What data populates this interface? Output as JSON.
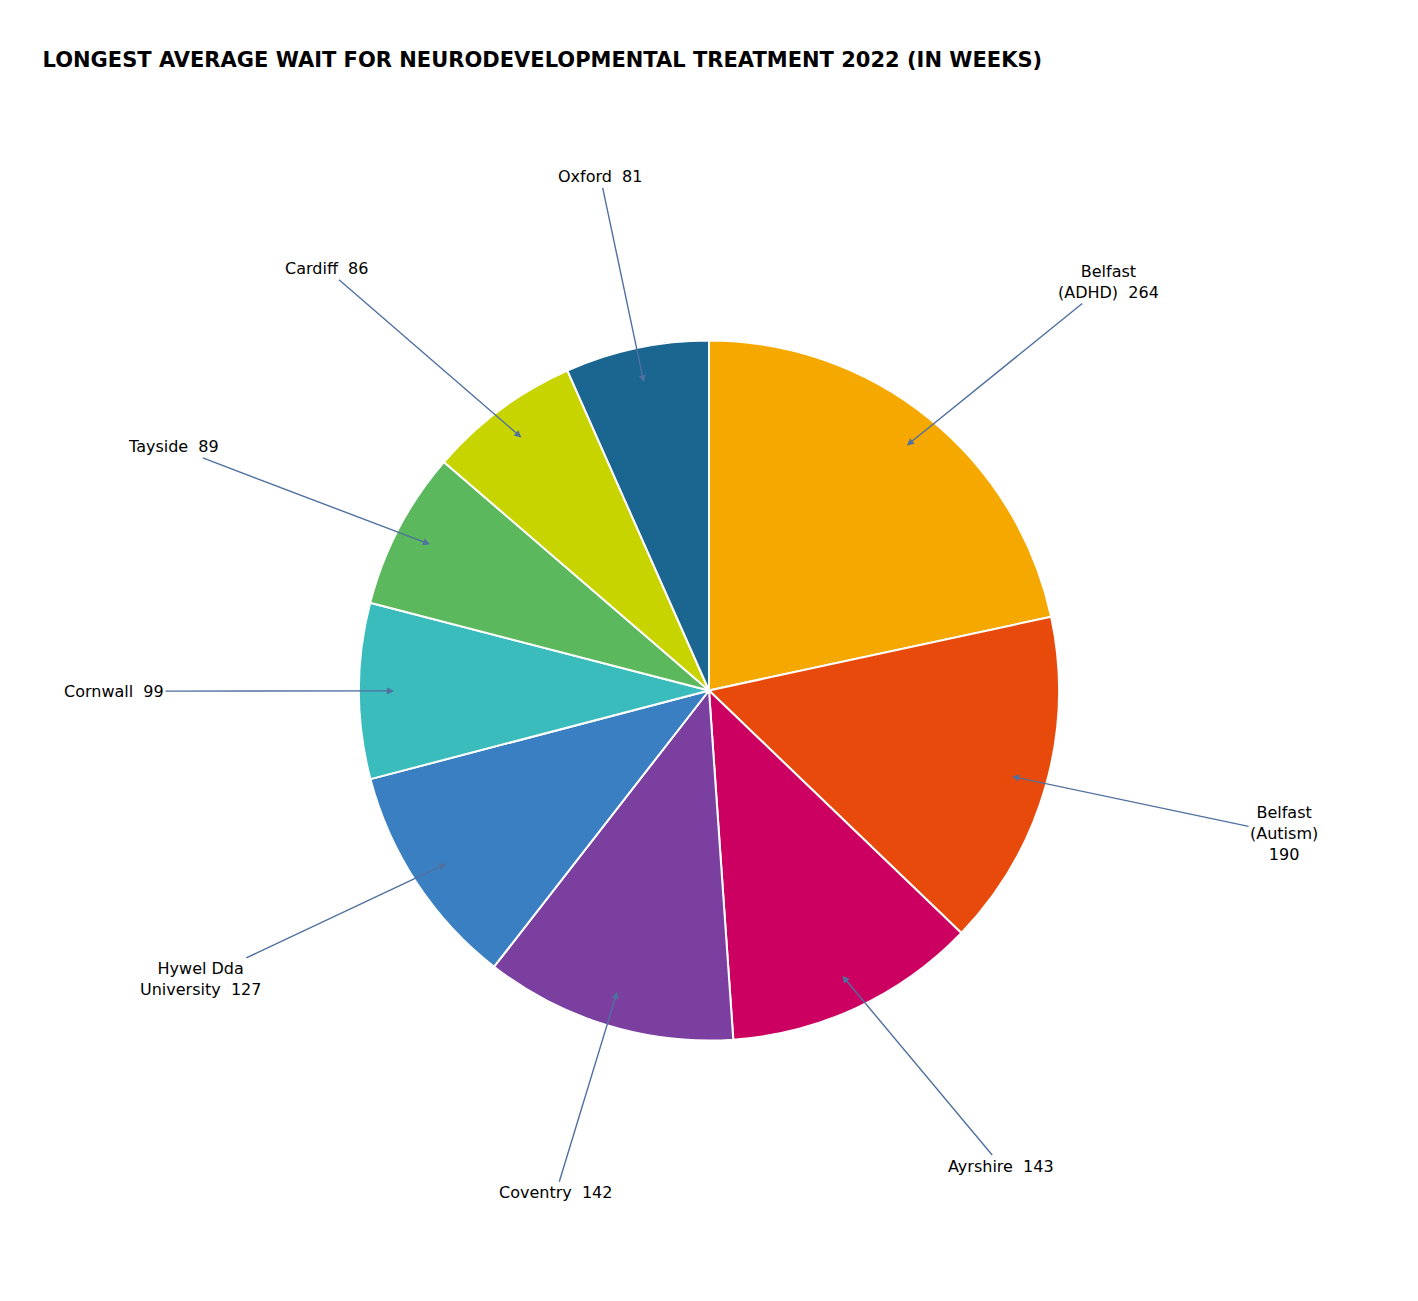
{
  "chart_data": {
    "type": "pie",
    "title": "LONGEST AVERAGE WAIT FOR NEURODEVELOPMENTAL TREATMENT 2022 (IN WEEKS)",
    "values": [
      264,
      190,
      143,
      142,
      127,
      99,
      89,
      86,
      81
    ],
    "colors": [
      "#F5A800",
      "#E84A0C",
      "#CC0060",
      "#7B3FA0",
      "#3A7FC1",
      "#3ABCBC",
      "#5CB85C",
      "#C8D400",
      "#1A6690"
    ],
    "annotations": [
      "Belfast\n(ADHD)  264",
      "Belfast\n(Autism)\n190",
      "Ayrshire  143",
      "Coventry  142",
      "Hywel Dda\nUniversity  127",
      "Cornwall  99",
      "Tayside  89",
      "Cardiff  86",
      "Oxford  81"
    ]
  }
}
